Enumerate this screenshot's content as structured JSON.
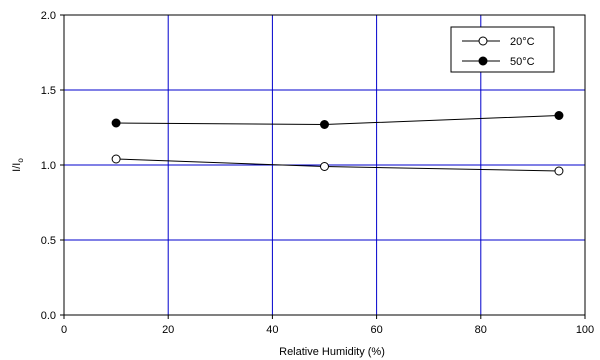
{
  "chart_data": {
    "type": "line",
    "xlabel": "Relative Humidity (%)",
    "ylabel": "I/I",
    "ylabel_subscript": "o",
    "xlim": [
      0,
      100
    ],
    "ylim": [
      0,
      2
    ],
    "x_ticks": [
      0,
      20,
      40,
      60,
      80,
      100
    ],
    "y_ticks": [
      0,
      0.5,
      1,
      1.5,
      2
    ],
    "x_tick_labels": [
      "0",
      "20",
      "40",
      "60",
      "80",
      "100"
    ],
    "y_tick_labels": [
      "0.0",
      "0.5",
      "1.0",
      "1.5",
      "2.0"
    ],
    "grid": true,
    "grid_color": "#0000cc",
    "legend_position": "top-right",
    "series": [
      {
        "name": "20°C",
        "marker": "open-circle",
        "x": [
          10,
          50,
          95
        ],
        "y": [
          1.04,
          0.99,
          0.96
        ]
      },
      {
        "name": "50°C",
        "marker": "filled-circle",
        "x": [
          10,
          50,
          95
        ],
        "y": [
          1.28,
          1.27,
          1.33
        ]
      }
    ]
  }
}
